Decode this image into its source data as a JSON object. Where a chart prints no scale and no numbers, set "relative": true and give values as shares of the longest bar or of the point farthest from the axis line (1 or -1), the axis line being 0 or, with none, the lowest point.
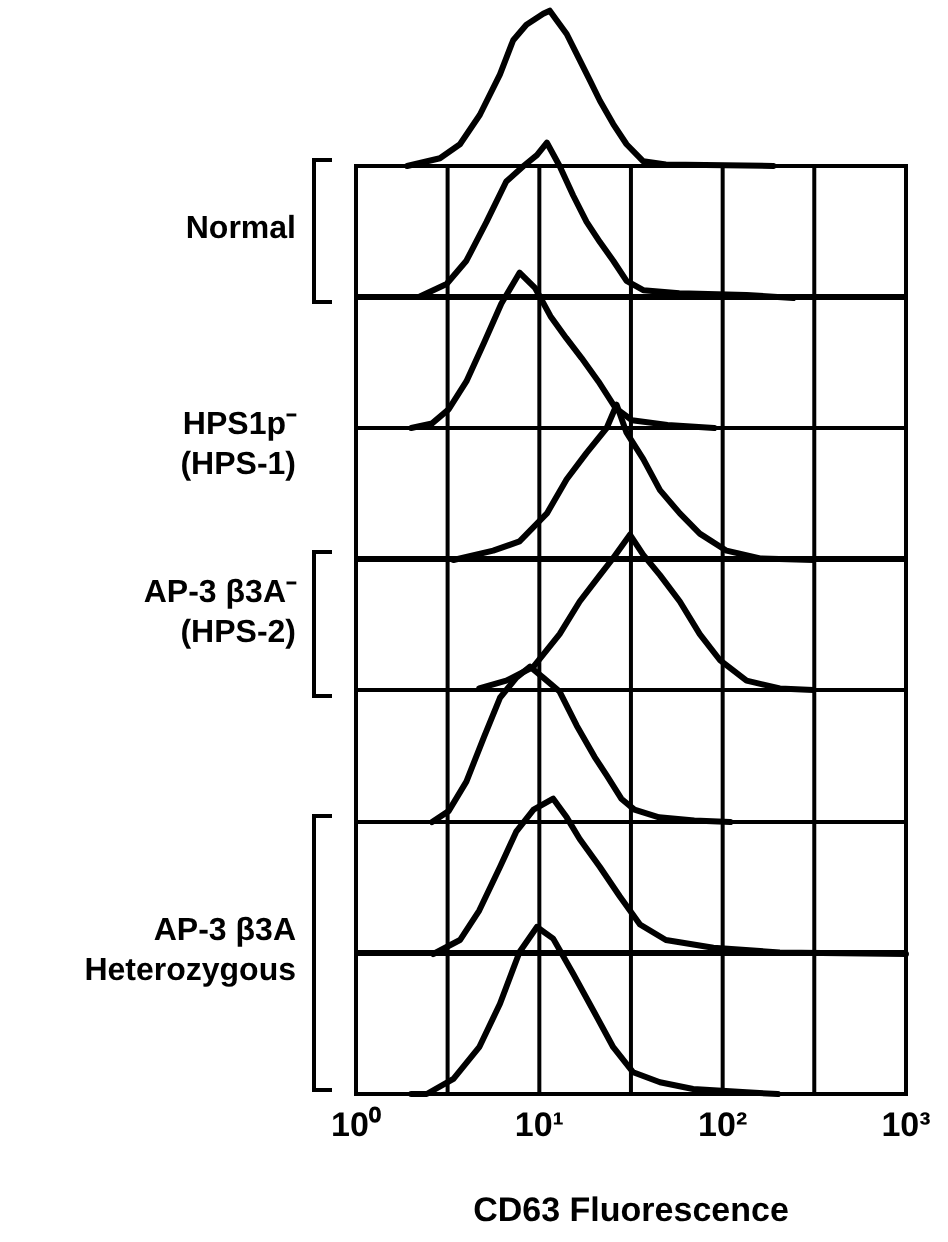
{
  "chart_data": [
    {
      "type": "line",
      "relative": true,
      "log": "x",
      "xlim": [
        1,
        1000
      ],
      "tick_labels": false,
      "color": "#000000",
      "x": [
        1.9,
        2.87,
        3.69,
        4.74,
        6.1,
        7.2,
        8.5,
        10.5,
        11.4,
        12.4,
        14.1,
        16,
        18.9,
        21.4,
        25.3,
        29.9,
        36.9,
        49,
        189
      ],
      "values": [
        0,
        0.05,
        0.14,
        0.33,
        0.59,
        0.81,
        0.91,
        0.98,
        1.0,
        0.94,
        0.85,
        0.72,
        0.55,
        0.42,
        0.27,
        0.14,
        0.03,
        0.01,
        0
      ]
    },
    {
      "type": "line",
      "relative": true,
      "log": "x",
      "xlim": [
        1,
        1000
      ],
      "xticks": [
        {
          "value": 1,
          "label": null
        },
        {
          "value": 3.16,
          "label": null
        },
        {
          "value": 10,
          "label": null
        },
        {
          "value": 31.6,
          "label": null
        },
        {
          "value": 100,
          "label": null
        },
        {
          "value": 316,
          "label": null
        },
        {
          "value": 1000,
          "label": null
        }
      ],
      "tick_labels": false,
      "grid": "x",
      "color": "#000000",
      "annotations": [
        "Normal"
      ],
      "x": [
        2.23,
        3.12,
        4.0,
        5.15,
        6.6,
        8.2,
        9.7,
        11.0,
        12.9,
        15.3,
        18.1,
        21.4,
        25.3,
        29.9,
        36.9,
        58,
        135,
        243
      ],
      "values": [
        0.01,
        0.09,
        0.24,
        0.49,
        0.75,
        0.85,
        0.92,
        1.0,
        0.85,
        0.66,
        0.49,
        0.36,
        0.24,
        0.11,
        0.05,
        0.03,
        0.02,
        0
      ]
    },
    {
      "type": "line",
      "relative": true,
      "log": "x",
      "xlim": [
        1,
        1000
      ],
      "xticks": [
        {
          "value": 1,
          "label": null
        },
        {
          "value": 3.16,
          "label": null
        },
        {
          "value": 10,
          "label": null
        },
        {
          "value": 31.6,
          "label": null
        },
        {
          "value": 100,
          "label": null
        },
        {
          "value": 316,
          "label": null
        },
        {
          "value": 1000,
          "label": null
        }
      ],
      "tick_labels": false,
      "grid": "x",
      "color": "#000000",
      "annotations": [
        "HPS1p⁻\n(HPS-1)"
      ],
      "x": [
        2.0,
        2.6,
        3.2,
        4.0,
        5.0,
        6.2,
        7.8,
        9.5,
        11.5,
        14,
        17,
        21,
        26,
        32,
        50,
        90
      ],
      "values": [
        0,
        0.03,
        0.12,
        0.3,
        0.55,
        0.8,
        1.0,
        0.9,
        0.72,
        0.58,
        0.45,
        0.3,
        0.13,
        0.05,
        0.02,
        0
      ]
    },
    {
      "type": "line",
      "relative": true,
      "log": "x",
      "xlim": [
        1,
        1000
      ],
      "xticks": [
        {
          "value": 1,
          "label": null
        },
        {
          "value": 3.16,
          "label": null
        },
        {
          "value": 10,
          "label": null
        },
        {
          "value": 31.6,
          "label": null
        },
        {
          "value": 100,
          "label": null
        },
        {
          "value": 316,
          "label": null
        },
        {
          "value": 1000,
          "label": null
        }
      ],
      "tick_labels": false,
      "grid": "x",
      "color": "#000000",
      "x": [
        3.4,
        5.6,
        7.8,
        11.0,
        14.1,
        18.1,
        23.3,
        26.4,
        29.9,
        36.9,
        45.5,
        58.4,
        75,
        105,
        160,
        312
      ],
      "values": [
        0,
        0.06,
        0.12,
        0.3,
        0.52,
        0.69,
        0.85,
        1.0,
        0.82,
        0.65,
        0.45,
        0.3,
        0.17,
        0.06,
        0.01,
        0
      ]
    },
    {
      "type": "line",
      "relative": true,
      "log": "x",
      "xlim": [
        1,
        1000
      ],
      "xticks": [
        {
          "value": 1,
          "label": null
        },
        {
          "value": 3.16,
          "label": null
        },
        {
          "value": 10,
          "label": null
        },
        {
          "value": 31.6,
          "label": null
        },
        {
          "value": 100,
          "label": null
        },
        {
          "value": 316,
          "label": null
        },
        {
          "value": 1000,
          "label": null
        }
      ],
      "tick_labels": false,
      "grid": "x",
      "color": "#000000",
      "annotations": [
        "AP-3 β3A⁻\n(HPS-2)"
      ],
      "x": [
        4.7,
        6.6,
        9.3,
        12.9,
        16.6,
        21.4,
        25.3,
        31.2,
        36.9,
        45.5,
        58.4,
        75,
        97,
        135,
        205,
        312
      ],
      "values": [
        0.01,
        0.06,
        0.15,
        0.36,
        0.57,
        0.74,
        0.85,
        1.0,
        0.87,
        0.74,
        0.57,
        0.36,
        0.19,
        0.06,
        0.01,
        0
      ]
    },
    {
      "type": "line",
      "relative": true,
      "log": "x",
      "xlim": [
        1,
        1000
      ],
      "xticks": [
        {
          "value": 1,
          "label": null
        },
        {
          "value": 3.16,
          "label": null
        },
        {
          "value": 10,
          "label": null
        },
        {
          "value": 31.6,
          "label": null
        },
        {
          "value": 100,
          "label": null
        },
        {
          "value": 316,
          "label": null
        },
        {
          "value": 1000,
          "label": null
        }
      ],
      "tick_labels": false,
      "grid": "x",
      "color": "#000000",
      "x": [
        2.6,
        3.2,
        4.0,
        5.0,
        6.1,
        7.5,
        8.9,
        10.5,
        12.9,
        16,
        20,
        23.3,
        28,
        33,
        45,
        70,
        110
      ],
      "values": [
        0,
        0.07,
        0.26,
        0.55,
        0.8,
        0.93,
        1.0,
        0.93,
        0.84,
        0.62,
        0.42,
        0.3,
        0.15,
        0.08,
        0.03,
        0.01,
        0
      ]
    },
    {
      "type": "line",
      "relative": true,
      "log": "x",
      "xlim": [
        1,
        1000
      ],
      "xticks": [
        {
          "value": 1,
          "label": null
        },
        {
          "value": 3.16,
          "label": null
        },
        {
          "value": 10,
          "label": null
        },
        {
          "value": 31.6,
          "label": null
        },
        {
          "value": 100,
          "label": null
        },
        {
          "value": 316,
          "label": null
        },
        {
          "value": 1000,
          "label": null
        }
      ],
      "tick_labels": false,
      "grid": "x",
      "color": "#000000",
      "annotations": [
        "AP-3 β3A\nHeterozygous"
      ],
      "x": [
        2.64,
        3.69,
        4.7,
        6.1,
        7.5,
        9.3,
        11.9,
        14.1,
        16.6,
        21.4,
        27.5,
        35.4,
        49,
        89,
        205,
        1000
      ],
      "values": [
        0,
        0.09,
        0.28,
        0.56,
        0.79,
        0.93,
        1.0,
        0.88,
        0.74,
        0.56,
        0.37,
        0.19,
        0.09,
        0.04,
        0.01,
        0
      ]
    },
    {
      "type": "line",
      "relative": true,
      "log": "x",
      "xlim": [
        1,
        1000
      ],
      "xticks": [
        {
          "value": 1,
          "label": "10⁰"
        },
        {
          "value": 3.16,
          "label": null
        },
        {
          "value": 10,
          "label": "10¹"
        },
        {
          "value": 31.6,
          "label": null
        },
        {
          "value": 100,
          "label": "10²"
        },
        {
          "value": 316,
          "label": null
        },
        {
          "value": 1000,
          "label": "10³"
        }
      ],
      "tick_labels": "x",
      "grid": "x",
      "color": "#000000",
      "xlabel": "CD63 Fluorescence",
      "x": [
        2.0,
        2.43,
        3.4,
        4.7,
        6.1,
        7.8,
        9.7,
        11.9,
        15.3,
        19.7,
        25.3,
        32.5,
        45.5,
        69,
        135,
        200
      ],
      "values": [
        0,
        0,
        0.09,
        0.28,
        0.54,
        0.85,
        1.0,
        0.93,
        0.72,
        0.5,
        0.28,
        0.13,
        0.07,
        0.03,
        0.01,
        0
      ]
    }
  ]
}
